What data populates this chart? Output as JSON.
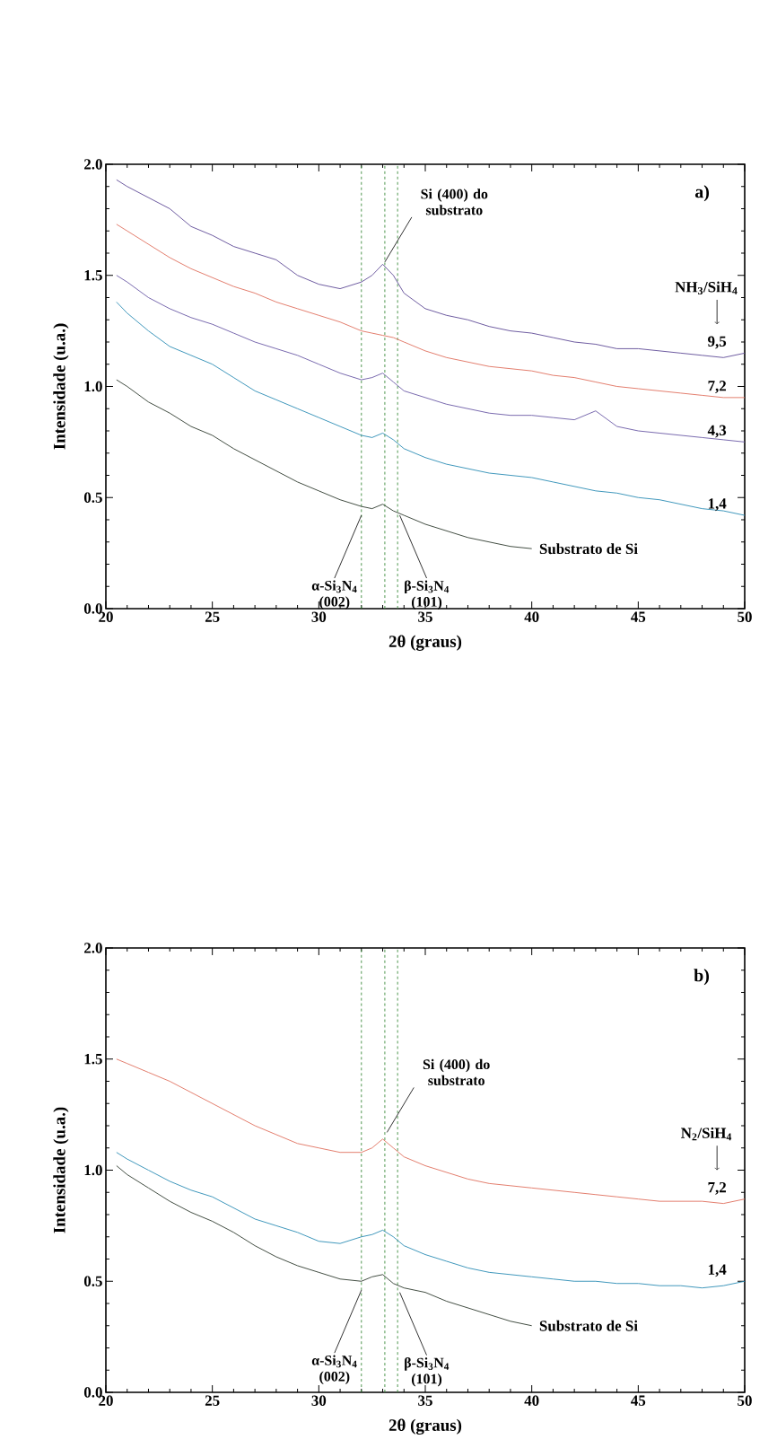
{
  "chart_data": [
    {
      "type": "line",
      "title": "a)",
      "xlabel": "2θ (graus)",
      "ylabel": "Intensidade (u.a.)",
      "legend_title": "NH$_{3}$/SiH$_{4}$",
      "xlim": [
        20,
        50
      ],
      "ylim": [
        0,
        2
      ],
      "xticks": [
        20,
        25,
        30,
        35,
        40,
        45,
        50
      ],
      "yticks": [
        {
          "value": 0,
          "label": "0.0"
        },
        {
          "value": 0.5,
          "label": "0.5"
        },
        {
          "value": 1,
          "label": "1.0"
        },
        {
          "value": 1.5,
          "label": "1.5"
        },
        {
          "value": 2,
          "label": "2.0"
        }
      ],
      "x": [
        20.5,
        21,
        22,
        23,
        24,
        25,
        26,
        27,
        28,
        29,
        30,
        31,
        32,
        32.5,
        33,
        33.5,
        34,
        35,
        36,
        37,
        38,
        39,
        40,
        41,
        42,
        43,
        44,
        45,
        46,
        47,
        48,
        49,
        50
      ],
      "series": [
        {
          "name": "9,5",
          "color": "#5e4a96",
          "values": [
            1.93,
            1.9,
            1.85,
            1.8,
            1.72,
            1.68,
            1.63,
            1.6,
            1.57,
            1.5,
            1.46,
            1.44,
            1.47,
            1.5,
            1.55,
            1.5,
            1.42,
            1.35,
            1.32,
            1.3,
            1.27,
            1.25,
            1.24,
            1.22,
            1.2,
            1.19,
            1.17,
            1.17,
            1.16,
            1.15,
            1.14,
            1.13,
            1.15
          ]
        },
        {
          "name": "7,2",
          "color": "#e0705e",
          "values": [
            1.73,
            1.7,
            1.64,
            1.58,
            1.53,
            1.49,
            1.45,
            1.42,
            1.38,
            1.35,
            1.32,
            1.29,
            1.25,
            1.24,
            1.23,
            1.22,
            1.2,
            1.16,
            1.13,
            1.11,
            1.09,
            1.08,
            1.07,
            1.05,
            1.04,
            1.02,
            1.0,
            0.99,
            0.98,
            0.97,
            0.96,
            0.95,
            0.95
          ]
        },
        {
          "name": "4,3",
          "color": "#6a5aa6",
          "values": [
            1.5,
            1.47,
            1.4,
            1.35,
            1.31,
            1.28,
            1.24,
            1.2,
            1.17,
            1.14,
            1.1,
            1.06,
            1.03,
            1.04,
            1.06,
            1.02,
            0.98,
            0.95,
            0.92,
            0.9,
            0.88,
            0.87,
            0.87,
            0.86,
            0.85,
            0.89,
            0.82,
            0.8,
            0.79,
            0.78,
            0.77,
            0.76,
            0.75
          ]
        },
        {
          "name": "1,4",
          "color": "#2a8cb4",
          "values": [
            1.38,
            1.33,
            1.25,
            1.18,
            1.14,
            1.1,
            1.04,
            0.98,
            0.94,
            0.9,
            0.86,
            0.82,
            0.78,
            0.77,
            0.79,
            0.76,
            0.72,
            0.68,
            0.65,
            0.63,
            0.61,
            0.6,
            0.59,
            0.57,
            0.55,
            0.53,
            0.52,
            0.5,
            0.49,
            0.47,
            0.45,
            0.44,
            0.42
          ]
        },
        {
          "name": "Substrato de Si",
          "color": "#2e3a2e",
          "x": [
            20.5,
            21,
            22,
            23,
            24,
            25,
            26,
            27,
            28,
            29,
            30,
            31,
            32,
            32.5,
            33,
            33.5,
            34,
            35,
            36,
            37,
            38,
            39,
            40
          ],
          "values": [
            1.03,
            1.0,
            0.93,
            0.88,
            0.82,
            0.78,
            0.72,
            0.67,
            0.62,
            0.57,
            0.53,
            0.49,
            0.46,
            0.45,
            0.47,
            0.44,
            0.42,
            0.38,
            0.35,
            0.32,
            0.3,
            0.28,
            0.27
          ]
        }
      ],
      "ref_lines": [
        {
          "axis": "x",
          "value": 32.0,
          "color": "#3a8a3a",
          "line_style": "dashed"
        },
        {
          "axis": "x",
          "value": 33.1,
          "color": "#3a8a3a",
          "line_style": "dashed"
        },
        {
          "axis": "x",
          "value": 33.7,
          "color": "#3a8a3a",
          "line_style": "dashed"
        }
      ],
      "annotations": [
        {
          "text": "Si (400) do substrato",
          "x": 33.1,
          "y": 1.56
        },
        {
          "text": "α-Si$_{3}$N$_{4}$ (002)",
          "x": 32.0,
          "y": 0.42
        },
        {
          "text": "β-Si$_{3}$N$_{4}$ (101)",
          "x": 33.8,
          "y": 0.42
        }
      ]
    },
    {
      "type": "line",
      "title": "b)",
      "xlabel": "2θ (graus)",
      "ylabel": "Intensidade (u.a.)",
      "legend_title": "N$_{2}$/SiH$_{4}$",
      "xlim": [
        20,
        50
      ],
      "ylim": [
        0,
        2
      ],
      "xticks": [
        20,
        25,
        30,
        35,
        40,
        45,
        50
      ],
      "yticks": [
        {
          "value": 0,
          "label": "0.0"
        },
        {
          "value": 0.5,
          "label": "0.5"
        },
        {
          "value": 1,
          "label": "1.0"
        },
        {
          "value": 1.5,
          "label": "1.5"
        },
        {
          "value": 2,
          "label": "2.0"
        }
      ],
      "x": [
        20.5,
        21,
        22,
        23,
        24,
        25,
        26,
        27,
        28,
        29,
        30,
        31,
        32,
        32.5,
        33,
        33.5,
        34,
        35,
        36,
        37,
        38,
        39,
        40,
        41,
        42,
        43,
        44,
        45,
        46,
        47,
        48,
        49,
        50
      ],
      "series": [
        {
          "name": "7,2",
          "color": "#e0705e",
          "values": [
            1.5,
            1.48,
            1.44,
            1.4,
            1.35,
            1.3,
            1.25,
            1.2,
            1.16,
            1.12,
            1.1,
            1.08,
            1.08,
            1.1,
            1.14,
            1.1,
            1.06,
            1.02,
            0.99,
            0.96,
            0.94,
            0.93,
            0.92,
            0.91,
            0.9,
            0.89,
            0.88,
            0.87,
            0.86,
            0.86,
            0.86,
            0.85,
            0.87
          ]
        },
        {
          "name": "1,4",
          "color": "#2a8cb4",
          "values": [
            1.08,
            1.05,
            1.0,
            0.95,
            0.91,
            0.88,
            0.83,
            0.78,
            0.75,
            0.72,
            0.68,
            0.67,
            0.7,
            0.71,
            0.73,
            0.7,
            0.66,
            0.62,
            0.59,
            0.56,
            0.54,
            0.53,
            0.52,
            0.51,
            0.5,
            0.5,
            0.49,
            0.49,
            0.48,
            0.48,
            0.47,
            0.48,
            0.5
          ]
        },
        {
          "name": "Substrato de Si",
          "color": "#2e3a2e",
          "x": [
            20.5,
            21,
            22,
            23,
            24,
            25,
            26,
            27,
            28,
            29,
            30,
            31,
            32,
            32.5,
            33,
            33.5,
            34,
            35,
            36,
            37,
            38,
            39,
            40
          ],
          "values": [
            1.02,
            0.98,
            0.92,
            0.86,
            0.81,
            0.77,
            0.72,
            0.66,
            0.61,
            0.57,
            0.54,
            0.51,
            0.5,
            0.52,
            0.53,
            0.49,
            0.47,
            0.45,
            0.41,
            0.38,
            0.35,
            0.32,
            0.3
          ]
        }
      ],
      "ref_lines": [
        {
          "axis": "x",
          "value": 32.0,
          "color": "#3a8a3a",
          "line_style": "dashed"
        },
        {
          "axis": "x",
          "value": 33.1,
          "color": "#3a8a3a",
          "line_style": "dashed"
        },
        {
          "axis": "x",
          "value": 33.7,
          "color": "#3a8a3a",
          "line_style": "dashed"
        }
      ],
      "annotations": [
        {
          "text": "Si (400) do substrato",
          "x": 33.2,
          "y": 1.17
        },
        {
          "text": "α-Si$_{3}$N$_{4}$ (002)",
          "x": 32.0,
          "y": 0.46
        },
        {
          "text": "β-Si$_{3}$N$_{4}$ (101)",
          "x": 33.8,
          "y": 0.45
        }
      ]
    }
  ]
}
